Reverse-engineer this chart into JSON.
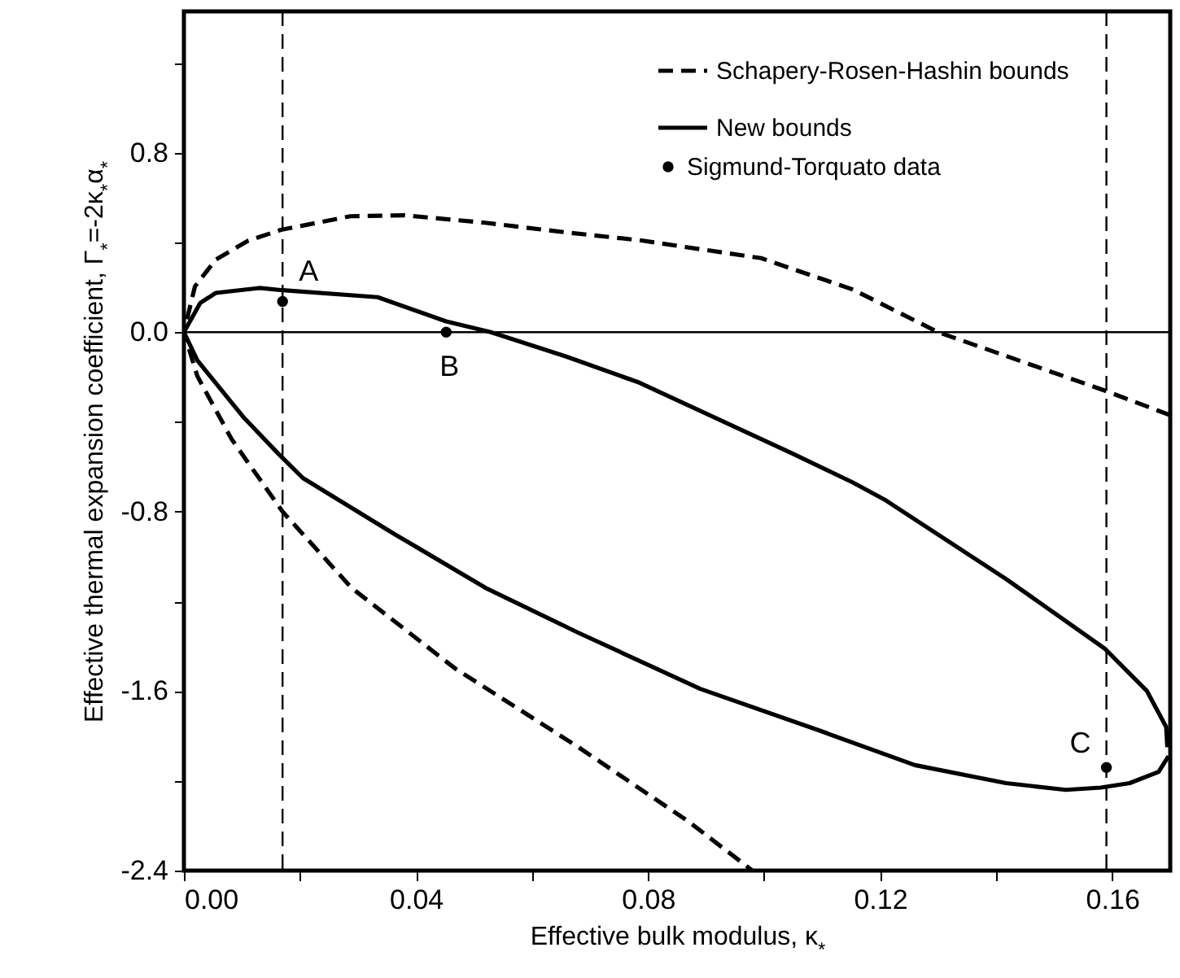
{
  "chart_data": {
    "type": "line",
    "xlabel": "Effective bulk modulus, κ$_{*}$",
    "ylabel": "Effective thermal expansion coefficient, Γ$_{*}$=-2κ$_{*}$α$_{*}$",
    "xlim": [
      0,
      0.17
    ],
    "ylim": [
      -2.4,
      1.43
    ],
    "xticks": [
      {
        "value": 0,
        "label": "0.00"
      },
      {
        "value": 0.02,
        "label": null
      },
      {
        "value": 0.04,
        "label": "0.04"
      },
      {
        "value": 0.06,
        "label": null
      },
      {
        "value": 0.08,
        "label": "0.08"
      },
      {
        "value": 0.1,
        "label": null
      },
      {
        "value": 0.12,
        "label": "0.12"
      },
      {
        "value": 0.14,
        "label": null
      },
      {
        "value": 0.16,
        "label": "0.16"
      }
    ],
    "yticks": [
      {
        "value": 1.2,
        "label": null
      },
      0.8,
      {
        "value": 0.4,
        "label": null
      },
      {
        "value": 0,
        "label": "0.0"
      },
      {
        "value": -0.4,
        "label": null
      },
      -0.8,
      {
        "value": -1.2,
        "label": null
      },
      -1.6,
      {
        "value": -2,
        "label": null
      },
      -2.4
    ],
    "grid": false,
    "legend": "top right",
    "series": [
      {
        "name": "Schapery-Rosen-Hashin bounds",
        "color": "#000000",
        "line_style": "dashed",
        "x": [
          0.17,
          0.1587,
          0.13,
          0.1153,
          0.0995,
          0.089,
          0.0785,
          0.0658,
          0.0519,
          0.038,
          0.0287,
          0.0167,
          0.0111,
          0.0055,
          0.0019,
          0,
          0.0023,
          0.0082,
          0.017,
          0.0289,
          0.0468,
          0.068,
          0.0869,
          0.098
        ],
        "values": [
          -0.37,
          -0.26,
          0,
          0.19,
          0.33,
          0.37,
          0.41,
          0.445,
          0.488,
          0.521,
          0.517,
          0.456,
          0.408,
          0.324,
          0.204,
          0,
          -0.195,
          -0.476,
          -0.8,
          -1.14,
          -1.5,
          -1.85,
          -2.18,
          -2.4
        ]
      },
      {
        "name": "New bounds",
        "color": "#000000",
        "line_style": "solid",
        "x": [
          0.1695,
          0.1693,
          0.166,
          0.1587,
          0.1417,
          0.121,
          0.1153,
          0.1048,
          0.0785,
          0.0658,
          0.0529,
          0.0452,
          0.0334,
          0.017,
          0.013,
          0.0055,
          0.0028,
          0,
          0.0023,
          0.0103,
          0.0162,
          0.0205,
          0.0363,
          0.052,
          0.068,
          0.089,
          0.11,
          0.126,
          0.1417,
          0.152,
          0.158,
          0.163,
          0.168,
          0.1697
        ],
        "values": [
          -1.85,
          -1.76,
          -1.6,
          -1.41,
          -1.1,
          -0.75,
          -0.67,
          -0.54,
          -0.225,
          -0.108,
          0,
          0.048,
          0.156,
          0.187,
          0.197,
          0.175,
          0.13,
          0,
          -0.125,
          -0.38,
          -0.54,
          -0.65,
          -0.9,
          -1.14,
          -1.34,
          -1.59,
          -1.78,
          -1.93,
          -2.01,
          -2.04,
          -2.03,
          -2.01,
          -1.96,
          -1.89
        ]
      },
      {
        "name": "Sigmund-Torquato data",
        "type": "scatter",
        "color": "#000000",
        "marker": "circle",
        "x": [
          0.017,
          0.0452,
          0.159
        ],
        "values": [
          0.137,
          0,
          -1.94
        ]
      }
    ],
    "ref_lines": [
      {
        "axis": "y",
        "value": 0,
        "line_style": "solid",
        "color": "#000000"
      },
      {
        "axis": "x",
        "value": 0.017,
        "line_style": "dashed",
        "color": "#000000"
      },
      {
        "axis": "x",
        "value": 0.159,
        "line_style": "dashed",
        "color": "#000000"
      }
    ],
    "annotations": [
      {
        "text": "A",
        "x": 0.017,
        "y": 0.137
      },
      {
        "text": "B",
        "x": 0.0452,
        "y": 0
      },
      {
        "text": "C",
        "x": 0.159,
        "y": -1.94
      }
    ]
  }
}
